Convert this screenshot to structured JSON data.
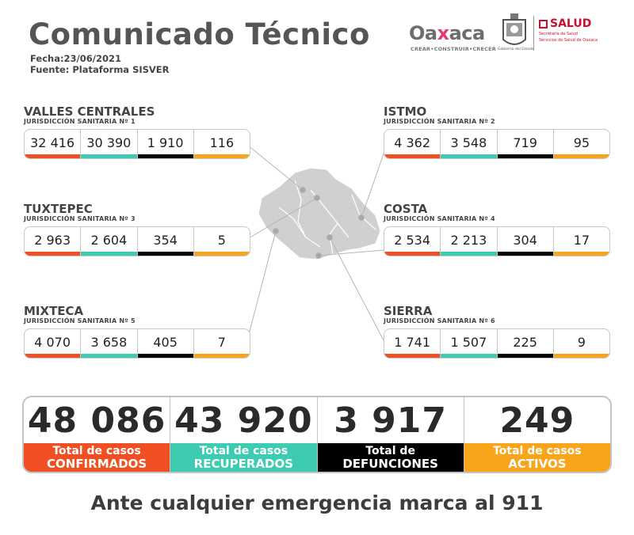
{
  "header": {
    "title": "Comunicado Técnico",
    "date": "Fecha:23/06/2021",
    "source": "Fuente: Plataforma SISVER"
  },
  "logos": {
    "oaxaca_word_a": "Oa",
    "oaxaca_word_x": "x",
    "oaxaca_word_b": "aca",
    "oaxaca_tagline": "CREAR•CONSTRUIR•CRECER",
    "seal_caption": "Gobierno del Estado",
    "salud_title": "SALUD",
    "salud_sub1": "Secretaría de Salud",
    "salud_sub2": "Servicios de Salud de Oaxaca"
  },
  "colors": {
    "confirmados": "#f04e23",
    "recuperados": "#3dcbb1",
    "defunciones": "#000000",
    "activos": "#f8a51b",
    "map": "#d0d0d0"
  },
  "regions": [
    {
      "name": "VALLES CENTRALES",
      "juris": "JURISDICCIÓN SANITARIA Nº 1",
      "values": [
        "32 416",
        "30 390",
        "1 910",
        "116"
      ]
    },
    {
      "name": "TUXTEPEC",
      "juris": "JURISDICCIÓN SANITARIA Nº 3",
      "values": [
        "2 963",
        "2 604",
        "354",
        "5"
      ]
    },
    {
      "name": "MIXTECA",
      "juris": "JURISDICCIÓN SANITARIA Nº 5",
      "values": [
        "4 070",
        "3 658",
        "405",
        "7"
      ]
    },
    {
      "name": "ISTMO",
      "juris": "JURISDICCIÓN SANITARIA Nº 2",
      "values": [
        "4 362",
        "3 548",
        "719",
        "95"
      ]
    },
    {
      "name": "COSTA",
      "juris": "JURISDICCIÓN SANITARIA Nº 4",
      "values": [
        "2 534",
        "2 213",
        "304",
        "17"
      ]
    },
    {
      "name": "SIERRA",
      "juris": "JURISDICCIÓN SANITARIA Nº 6",
      "values": [
        "1 741",
        "1 507",
        "225",
        "9"
      ]
    }
  ],
  "totals": [
    {
      "value": "48 086",
      "line1": "Total de casos",
      "line2": "CONFIRMADOS"
    },
    {
      "value": "43 920",
      "line1": "Total de casos",
      "line2": "RECUPERADOS"
    },
    {
      "value": "3 917",
      "line1": "Total de",
      "line2": "DEFUNCIONES"
    },
    {
      "value": "249",
      "line1": "Total de casos",
      "line2": "ACTIVOS"
    }
  ],
  "footer": "Ante cualquier emergencia marca al 911"
}
